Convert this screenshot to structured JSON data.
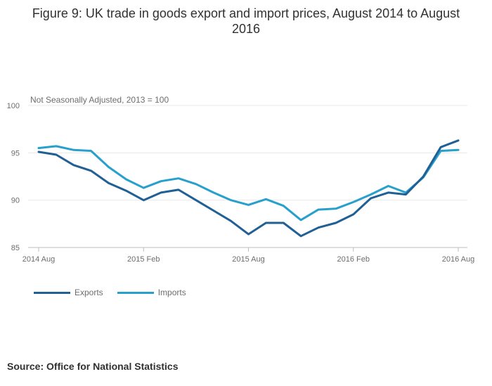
{
  "title": "Figure 9: UK trade in goods export and import prices, August 2014 to August 2016",
  "subtitle": "Not Seasonally Adjusted, 2013 = 100",
  "source": "Source: Office for National Statistics",
  "colors": {
    "exports": "#206095",
    "imports": "#27a0cc",
    "grid": "#e8e8e8",
    "axis": "#bdbdbd"
  },
  "chart_data": {
    "type": "line",
    "x": [
      "2014 Aug",
      "2014 Sep",
      "2014 Oct",
      "2014 Nov",
      "2014 Dec",
      "2015 Jan",
      "2015 Feb",
      "2015 Mar",
      "2015 Apr",
      "2015 May",
      "2015 Jun",
      "2015 Jul",
      "2015 Aug",
      "2015 Sep",
      "2015 Oct",
      "2015 Nov",
      "2015 Dec",
      "2016 Jan",
      "2016 Feb",
      "2016 Mar",
      "2016 Apr",
      "2016 May",
      "2016 Jun",
      "2016 Jul",
      "2016 Aug"
    ],
    "x_ticks": [
      "2014 Aug",
      "2015 Feb",
      "2015 Aug",
      "2016 Feb",
      "2016 Aug"
    ],
    "y_ticks": [
      85,
      90,
      95,
      100
    ],
    "ylim": [
      85,
      100
    ],
    "grid": true,
    "legend_position": "bottom-left",
    "series": [
      {
        "name": "Exports",
        "values": [
          95.1,
          94.8,
          93.7,
          93.1,
          91.8,
          91.0,
          90.0,
          90.8,
          91.1,
          90.0,
          88.9,
          87.8,
          86.4,
          87.6,
          87.6,
          86.2,
          87.1,
          87.6,
          88.5,
          90.2,
          90.8,
          90.6,
          92.5,
          95.6,
          96.3
        ]
      },
      {
        "name": "Imports",
        "values": [
          95.5,
          95.7,
          95.3,
          95.2,
          93.5,
          92.2,
          91.3,
          92.0,
          92.3,
          91.7,
          90.8,
          90.0,
          89.5,
          90.1,
          89.4,
          87.9,
          89.0,
          89.1,
          89.8,
          90.6,
          91.5,
          90.8,
          92.4,
          95.2,
          95.3
        ]
      }
    ]
  }
}
